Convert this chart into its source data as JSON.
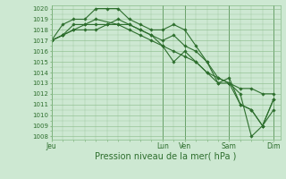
{
  "background_color": "#cde8d2",
  "grid_color": "#88bb88",
  "line_color": "#2d6e2d",
  "marker_color": "#2d6e2d",
  "ylabel_min": 1008,
  "ylabel_max": 1020,
  "ytick_step": 1,
  "xlabel": "Pression niveau de la mer( hPa )",
  "xtick_labels": [
    "Jeu",
    "",
    "Lun",
    "Ven",
    "",
    "Sam",
    "",
    "Dim"
  ],
  "xtick_positions": [
    0,
    2.5,
    5,
    6,
    7,
    8,
    9,
    10
  ],
  "xlim": [
    0,
    10.3
  ],
  "series1": {
    "x": [
      0,
      0.5,
      1,
      1.5,
      2,
      2.5,
      3,
      3.5,
      4,
      4.5,
      5,
      5.5,
      6,
      6.5,
      7,
      7.5,
      8,
      8.5,
      9,
      9.5,
      10
    ],
    "y": [
      1017,
      1018.5,
      1019,
      1019,
      1020,
      1020,
      1020,
      1019,
      1018.5,
      1018,
      1018,
      1018.5,
      1018,
      1016.5,
      1015,
      1013,
      1013.5,
      1011,
      1010.5,
      1009,
      1011.5
    ]
  },
  "series2": {
    "x": [
      0,
      0.5,
      1,
      1.5,
      2,
      3,
      3.5,
      4,
      4.5,
      5,
      5.5,
      6,
      6.5,
      7,
      7.5,
      8,
      8.5,
      9,
      9.5,
      10
    ],
    "y": [
      1017,
      1017.5,
      1018.5,
      1018.5,
      1019,
      1018.5,
      1018.5,
      1018,
      1017.5,
      1017,
      1017.5,
      1016.5,
      1016,
      1015,
      1013.5,
      1013,
      1011,
      1010.5,
      1009,
      1011.5
    ]
  },
  "series3": {
    "x": [
      0,
      0.5,
      1,
      1.5,
      2,
      2.5,
      3,
      3.5,
      4,
      4.5,
      5,
      5.5,
      6,
      6.5,
      7,
      7.5,
      8,
      8.5,
      9,
      9.5,
      10
    ],
    "y": [
      1017,
      1017.5,
      1018,
      1018,
      1018,
      1018.5,
      1018.5,
      1018,
      1017.5,
      1017,
      1016.5,
      1016,
      1015.5,
      1015,
      1014,
      1013,
      1013,
      1012.5,
      1012.5,
      1012,
      1012
    ]
  },
  "series4": {
    "x": [
      0,
      0.5,
      1,
      1.5,
      2,
      2.5,
      3,
      3.5,
      4,
      4.5,
      5,
      5.5,
      6,
      6.5,
      7,
      7.5,
      8,
      8.5,
      9,
      9.5,
      10
    ],
    "y": [
      1017,
      1017.5,
      1018,
      1018.5,
      1018.5,
      1018.5,
      1019,
      1018.5,
      1018,
      1017.5,
      1016.5,
      1015,
      1016,
      1015,
      1014,
      1013.5,
      1013,
      1012,
      1008,
      1009,
      1010.5
    ]
  },
  "vline_positions": [
    0,
    5,
    6,
    8,
    10
  ],
  "vline_color": "#2d6e2d",
  "xlabel_fontsize": 7,
  "xtick_fontsize": 5.5,
  "ytick_fontsize": 5.0
}
